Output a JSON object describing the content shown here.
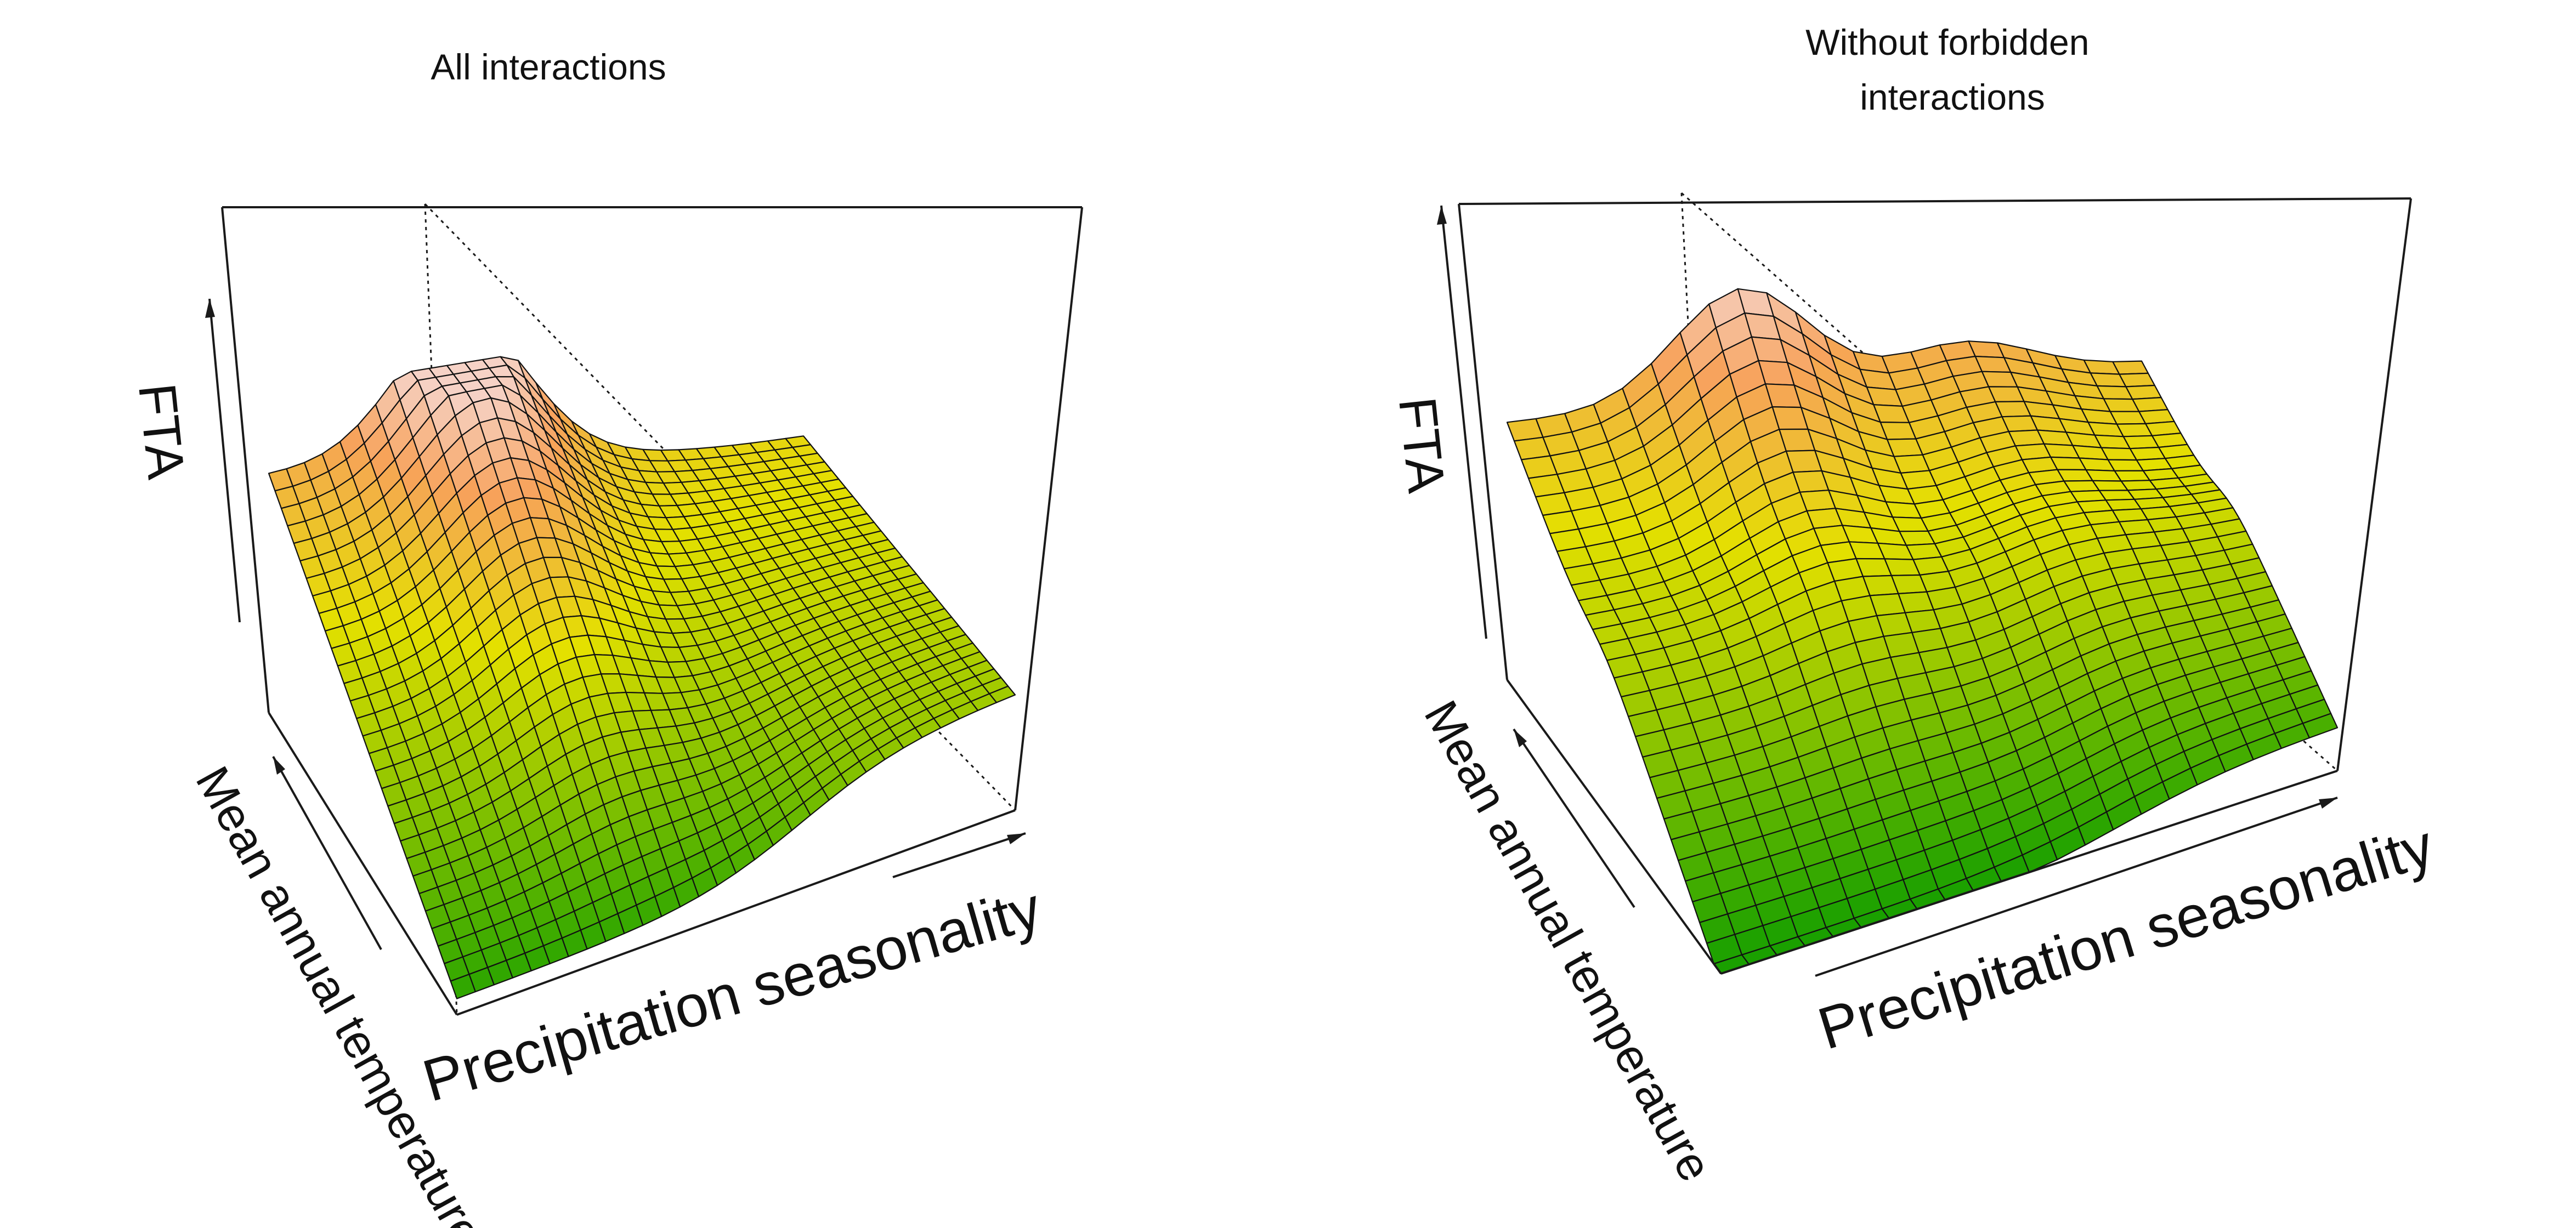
{
  "colors": {
    "surface_low": "#1aa000",
    "surface_mid": "#e4e000",
    "surface_orange": "#f7a25a",
    "surface_peak": "#f6d2c6",
    "grid": "#111111",
    "box": "#1a1a1a"
  },
  "chart_data": [
    {
      "type": "surface3d",
      "title": "All interactions",
      "xlabel": "Precipitation seasonality",
      "ylabel": "Mean annual temperature",
      "zlabel": "FTA",
      "grid_cells": [
        30,
        30
      ],
      "z_range": [
        0,
        1
      ],
      "description_values": {
        "z_at_low_temp_low_precip": 0.05,
        "z_at_high_temp_low_precip": 0.72,
        "z_at_high_temp_mid_precip": 0.95,
        "z_at_low_temp_high_precip": 0.35,
        "z_at_high_temp_high_precip": 0.52
      }
    },
    {
      "type": "surface3d",
      "title": "Without forbidden interactions",
      "xlabel": "Precipitation seasonality",
      "ylabel": "Mean annual temperature",
      "zlabel": "FTA",
      "grid_cells": [
        22,
        30
      ],
      "z_range": [
        0,
        1
      ],
      "description_values": {
        "z_at_low_temp_low_precip": 0.05,
        "z_at_high_temp_low_precip": 0.78,
        "z_at_high_temp_mid_precip": 0.98,
        "z_at_low_temp_high_precip": 0.2,
        "z_at_high_temp_high_precip": 0.48
      }
    }
  ]
}
